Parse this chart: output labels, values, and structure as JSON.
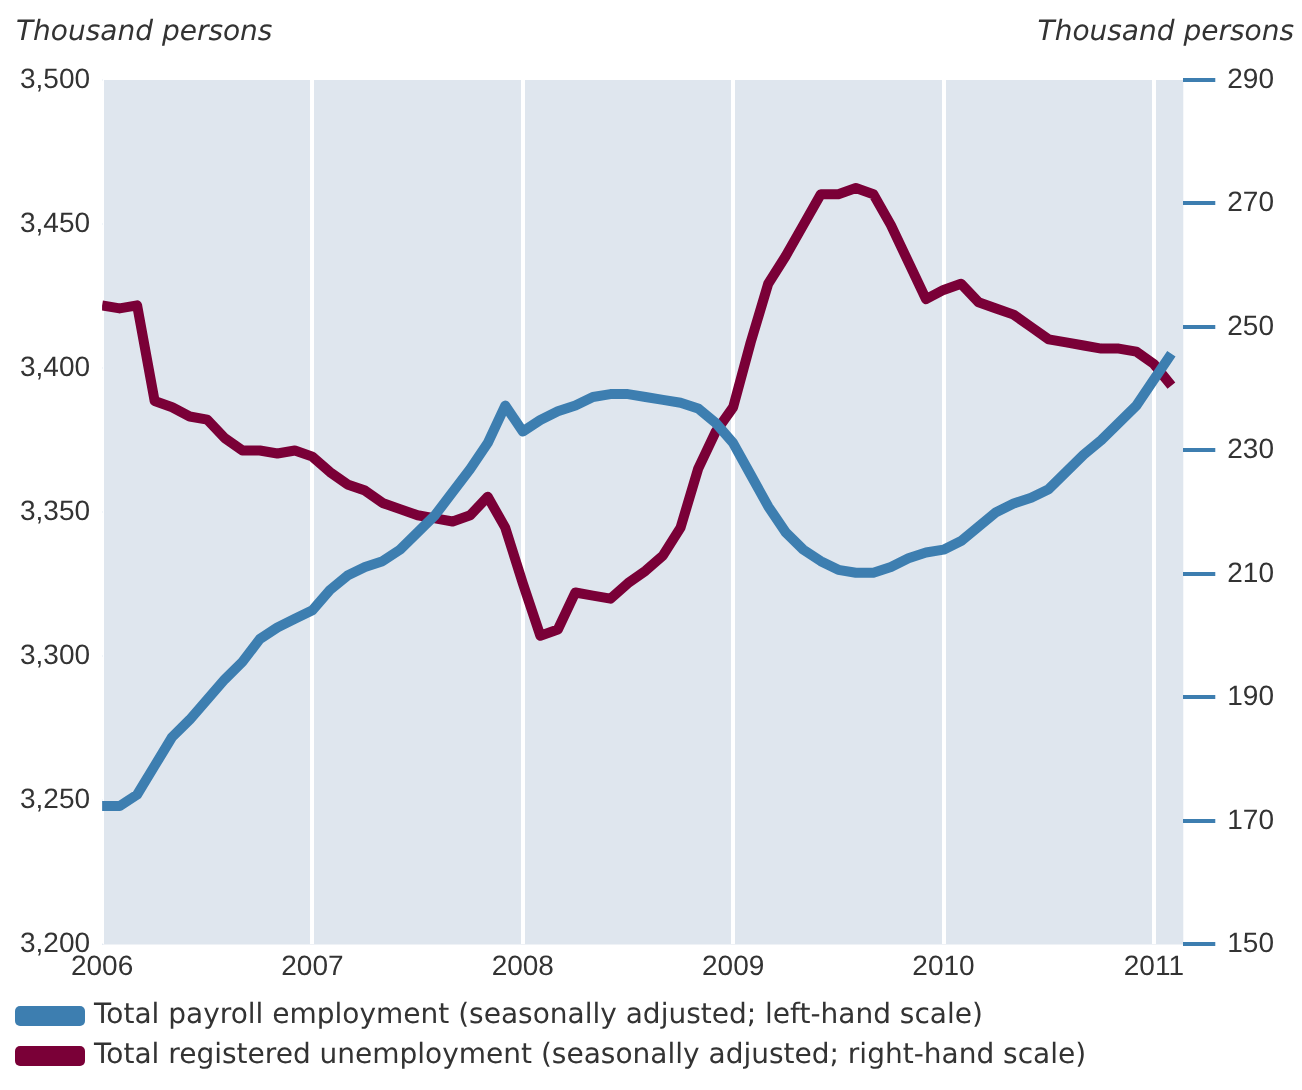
{
  "chart_data": {
    "type": "line",
    "ylabel": "Thousand persons",
    "y2label": "Thousand persons",
    "x": [
      "2006-01",
      "2006-02",
      "2006-03",
      "2006-04",
      "2006-05",
      "2006-06",
      "2006-07",
      "2006-08",
      "2006-09",
      "2006-10",
      "2006-11",
      "2006-12",
      "2007-01",
      "2007-02",
      "2007-03",
      "2007-04",
      "2007-05",
      "2007-06",
      "2007-07",
      "2007-08",
      "2007-09",
      "2007-10",
      "2007-11",
      "2007-12",
      "2008-01",
      "2008-02",
      "2008-03",
      "2008-04",
      "2008-05",
      "2008-06",
      "2008-07",
      "2008-08",
      "2008-09",
      "2008-10",
      "2008-11",
      "2008-12",
      "2009-01",
      "2009-02",
      "2009-03",
      "2009-04",
      "2009-05",
      "2009-06",
      "2009-07",
      "2009-08",
      "2009-09",
      "2009-10",
      "2009-11",
      "2009-12",
      "2010-01",
      "2010-02",
      "2010-03",
      "2010-04",
      "2010-05",
      "2010-06",
      "2010-07",
      "2010-08",
      "2010-09",
      "2010-10",
      "2010-11",
      "2010-12",
      "2011-01",
      "2011-02"
    ],
    "series": [
      {
        "name": "Total payroll employment (seasonally adjusted; left-hand scale)",
        "color": "#3d7eb0",
        "values": [
          3248,
          3248,
          3252,
          3262,
          3272,
          3278,
          3285,
          3292,
          3298,
          3306,
          3310,
          3313,
          3316,
          3323,
          3328,
          3331,
          3333,
          3337,
          3343,
          3349,
          3357,
          3365,
          3374,
          3387,
          3378,
          3382,
          3385,
          3387,
          3390,
          3391,
          3391,
          3390,
          3389,
          3388,
          3386,
          3381,
          3374,
          3363,
          3352,
          3343,
          3337,
          3333,
          3330,
          3329,
          3329,
          3331,
          3334,
          3336,
          3337,
          3340,
          3345,
          3350,
          3353,
          3355,
          3358,
          3364,
          3370,
          3375,
          3381,
          3387,
          3396,
          3405
        ]
      },
      {
        "name": "Total registered unemployment (seasonally adjusted; right-hand scale)",
        "color": "#7a0037",
        "axis": "y2",
        "values": [
          253.5,
          253,
          253.5,
          238,
          237,
          235.5,
          235,
          232,
          230,
          230,
          229.5,
          230,
          229,
          226.5,
          224.5,
          223.5,
          221.5,
          220.5,
          219.5,
          219,
          218.5,
          219.5,
          222.5,
          217.5,
          208.5,
          200,
          201,
          207,
          206.5,
          206,
          208.5,
          210.5,
          213,
          217.5,
          227,
          233,
          237,
          247.5,
          257,
          261.5,
          266.5,
          271.5,
          271.5,
          272.5,
          271.5,
          266.5,
          260.5,
          254.5,
          256,
          257,
          254,
          253,
          252,
          250,
          248,
          247.5,
          247,
          246.5,
          246.5,
          246,
          244,
          240.5
        ]
      }
    ],
    "xlim": [
      "2006-01-01",
      "2011-02-20"
    ],
    "xticks": [
      "2006",
      "2007",
      "2008",
      "2009",
      "2010",
      "2011"
    ],
    "ylim": [
      3200,
      3500
    ],
    "yticks": [
      {
        "value": 3200,
        "label": "3,200"
      },
      {
        "value": 3250,
        "label": "3,250"
      },
      {
        "value": 3300,
        "label": "3,300"
      },
      {
        "value": 3350,
        "label": "3,350"
      },
      {
        "value": 3400,
        "label": "3,400"
      },
      {
        "value": 3450,
        "label": "3,450"
      },
      {
        "value": 3500,
        "label": "3,500"
      }
    ],
    "y2lim": [
      150,
      290
    ],
    "y2ticks": [
      150,
      170,
      190,
      210,
      230,
      250,
      270,
      290
    ],
    "grid": "x",
    "legend": "bottom",
    "marker": "none",
    "line_style": "solid"
  }
}
